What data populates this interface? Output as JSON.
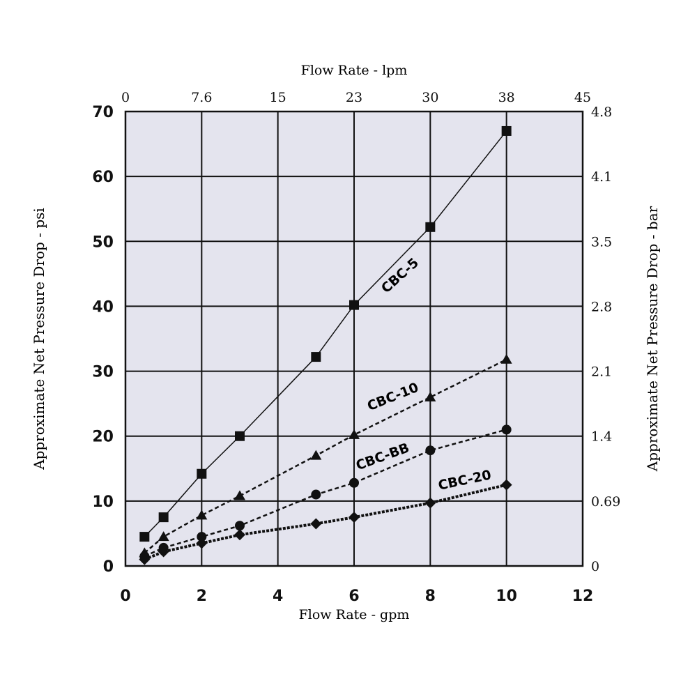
{
  "chart_data": {
    "type": "line",
    "xlabel": "Flow Rate - gpm",
    "x2label": "Flow Rate - lpm",
    "ylabel": "Approximate Net Pressure Drop - psi",
    "y2label": "Approximate Net Pressure Drop - bar",
    "xlim": [
      0,
      12
    ],
    "ylim": [
      0,
      70
    ],
    "x_ticks": [
      "0",
      "2",
      "4",
      "6",
      "8",
      "10",
      "12"
    ],
    "x2_ticks": [
      "0",
      "7.6",
      "15",
      "23",
      "30",
      "38",
      "45"
    ],
    "y_ticks": [
      "0",
      "10",
      "20",
      "30",
      "40",
      "50",
      "60",
      "70"
    ],
    "y2_ticks": [
      "0",
      "0.69",
      "1.4",
      "2.1",
      "2.8",
      "3.5",
      "4.1",
      "4.8"
    ],
    "grid": true,
    "series": [
      {
        "name": "CBC-5",
        "marker": "square",
        "line": "solid",
        "x": [
          0.5,
          1,
          2,
          3,
          5,
          6,
          8,
          10
        ],
        "y": [
          4.5,
          7.5,
          14.2,
          20,
          32.2,
          40.2,
          52.2,
          67
        ]
      },
      {
        "name": "CBC-10",
        "marker": "triangle",
        "line": "dashed",
        "x": [
          0.5,
          1,
          2,
          3,
          5,
          6,
          8,
          10
        ],
        "y": [
          2,
          4.5,
          7.8,
          10.8,
          17,
          20.2,
          26,
          31.8
        ]
      },
      {
        "name": "CBC-BB",
        "marker": "circle",
        "line": "dashed",
        "x": [
          0.5,
          1,
          2,
          3,
          5,
          6,
          8,
          10
        ],
        "y": [
          1.5,
          2.8,
          4.5,
          6.2,
          11,
          12.8,
          17.8,
          21
        ]
      },
      {
        "name": "CBC-20",
        "marker": "diamond",
        "line": "dotted-thick",
        "x": [
          0.5,
          1,
          2,
          3,
          5,
          6,
          8,
          10
        ],
        "y": [
          1,
          2.2,
          3.5,
          4.8,
          6.5,
          7.5,
          9.7,
          12.5
        ]
      }
    ],
    "colors": {
      "plot_bg": "#e4e4ee",
      "ink": "#111111"
    }
  }
}
